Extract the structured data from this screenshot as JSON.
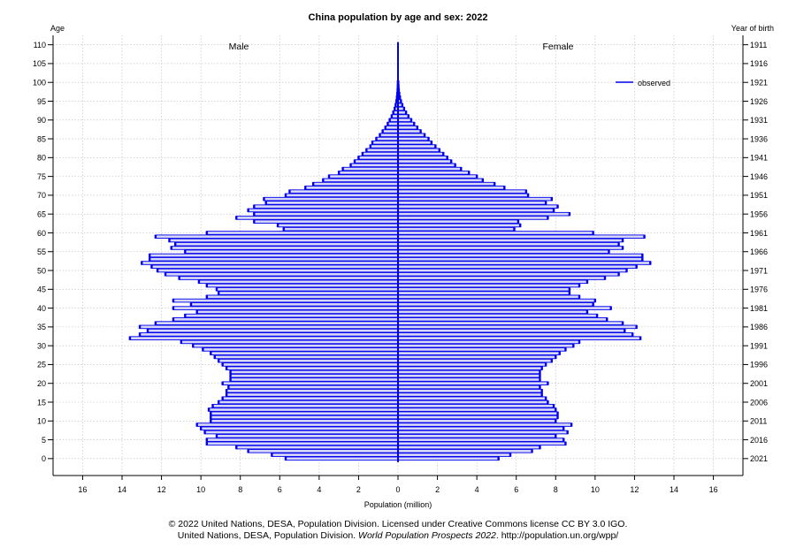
{
  "chart_data": {
    "type": "bar",
    "orientation": "horizontal",
    "title": "China population by age and sex: 2022",
    "left_axis_title": "Age",
    "right_axis_title": "Year of birth",
    "xlabel": "Population (million)",
    "xlim": [
      -17.5,
      17.5
    ],
    "ylim": [
      -4.5,
      112.5
    ],
    "x_ticks": [
      -16,
      -14,
      -12,
      -10,
      -8,
      -6,
      -4,
      -2,
      0,
      2,
      4,
      6,
      8,
      10,
      12,
      14,
      16
    ],
    "x_tick_labels": [
      "16",
      "14",
      "12",
      "10",
      "8",
      "6",
      "4",
      "2",
      "0",
      "2",
      "4",
      "6",
      "8",
      "10",
      "12",
      "14",
      "16"
    ],
    "age_ticks": [
      "0",
      "5",
      "10",
      "15",
      "20",
      "25",
      "30",
      "35",
      "40",
      "45",
      "50",
      "55",
      "60",
      "65",
      "70",
      "75",
      "80",
      "85",
      "90",
      "95",
      "100",
      "105",
      "110"
    ],
    "birth_year_ticks": [
      "2021",
      "2016",
      "2011",
      "2006",
      "2001",
      "1996",
      "1991",
      "1986",
      "1981",
      "1976",
      "1971",
      "1966",
      "1961",
      "1956",
      "1951",
      "1946",
      "1941",
      "1936",
      "1931",
      "1926",
      "1921",
      "1916",
      "1911"
    ],
    "grid": true,
    "legend_position": "top-right",
    "colors": {
      "bar_fill": "#d6d6f5",
      "bar_edge": "#0000ee",
      "axis": "#000000",
      "grid": "#bbbbbb"
    },
    "series": [
      {
        "name": "Male",
        "ages": [
          0,
          1,
          2,
          3,
          4,
          5,
          6,
          7,
          8,
          9,
          10,
          11,
          12,
          13,
          14,
          15,
          16,
          17,
          18,
          19,
          20,
          21,
          22,
          23,
          24,
          25,
          26,
          27,
          28,
          29,
          30,
          31,
          32,
          33,
          34,
          35,
          36,
          37,
          38,
          39,
          40,
          41,
          42,
          43,
          44,
          45,
          46,
          47,
          48,
          49,
          50,
          51,
          52,
          53,
          54,
          55,
          56,
          57,
          58,
          59,
          60,
          61,
          62,
          63,
          64,
          65,
          66,
          67,
          68,
          69,
          70,
          71,
          72,
          73,
          74,
          75,
          76,
          77,
          78,
          79,
          80,
          81,
          82,
          83,
          84,
          85,
          86,
          87,
          88,
          89,
          90,
          91,
          92,
          93,
          94,
          95,
          96,
          97,
          98,
          99,
          100
        ],
        "values": [
          5.7,
          6.4,
          7.6,
          8.2,
          9.7,
          9.7,
          9.2,
          9.8,
          10.0,
          10.2,
          9.5,
          9.5,
          9.5,
          9.6,
          9.4,
          9.1,
          8.9,
          8.7,
          8.7,
          8.6,
          8.9,
          8.5,
          8.5,
          8.5,
          8.7,
          8.9,
          9.1,
          9.3,
          9.5,
          9.9,
          10.4,
          11.0,
          13.6,
          13.1,
          12.7,
          13.1,
          12.3,
          11.4,
          10.8,
          10.2,
          11.4,
          10.5,
          11.4,
          9.7,
          9.1,
          9.2,
          9.7,
          10.1,
          11.1,
          11.8,
          12.2,
          12.5,
          13.0,
          12.6,
          12.6,
          10.8,
          11.5,
          11.3,
          11.6,
          12.3,
          9.7,
          5.8,
          6.1,
          7.3,
          8.2,
          7.3,
          7.6,
          7.3,
          6.7,
          6.8,
          5.7,
          5.5,
          4.7,
          4.3,
          3.8,
          3.5,
          3.0,
          2.8,
          2.4,
          2.2,
          2.0,
          1.8,
          1.6,
          1.4,
          1.3,
          1.1,
          0.92,
          0.78,
          0.64,
          0.52,
          0.42,
          0.32,
          0.24,
          0.17,
          0.12,
          0.08,
          0.055,
          0.035,
          0.02,
          0.012,
          0.007
        ]
      },
      {
        "name": "Female",
        "ages": [
          0,
          1,
          2,
          3,
          4,
          5,
          6,
          7,
          8,
          9,
          10,
          11,
          12,
          13,
          14,
          15,
          16,
          17,
          18,
          19,
          20,
          21,
          22,
          23,
          24,
          25,
          26,
          27,
          28,
          29,
          30,
          31,
          32,
          33,
          34,
          35,
          36,
          37,
          38,
          39,
          40,
          41,
          42,
          43,
          44,
          45,
          46,
          47,
          48,
          49,
          50,
          51,
          52,
          53,
          54,
          55,
          56,
          57,
          58,
          59,
          60,
          61,
          62,
          63,
          64,
          65,
          66,
          67,
          68,
          69,
          70,
          71,
          72,
          73,
          74,
          75,
          76,
          77,
          78,
          79,
          80,
          81,
          82,
          83,
          84,
          85,
          86,
          87,
          88,
          89,
          90,
          91,
          92,
          93,
          94,
          95,
          96,
          97,
          98,
          99,
          100
        ],
        "values": [
          5.1,
          5.7,
          6.8,
          7.2,
          8.5,
          8.4,
          8.0,
          8.6,
          8.4,
          8.8,
          8.0,
          8.1,
          8.1,
          8.0,
          7.9,
          7.6,
          7.5,
          7.3,
          7.3,
          7.2,
          7.6,
          7.2,
          7.2,
          7.2,
          7.3,
          7.5,
          7.8,
          8.0,
          8.2,
          8.5,
          8.9,
          9.2,
          12.3,
          11.9,
          11.5,
          12.1,
          11.4,
          10.6,
          10.1,
          9.6,
          10.8,
          9.9,
          10.0,
          9.2,
          8.7,
          8.7,
          9.2,
          9.6,
          10.5,
          11.2,
          11.6,
          12.1,
          12.8,
          12.4,
          12.4,
          10.7,
          11.4,
          11.2,
          11.4,
          12.5,
          9.9,
          5.9,
          6.2,
          6.1,
          7.6,
          8.7,
          7.9,
          8.1,
          7.5,
          7.8,
          6.6,
          6.5,
          5.4,
          4.9,
          4.3,
          4.0,
          3.6,
          3.2,
          2.9,
          2.7,
          2.5,
          2.3,
          2.1,
          1.9,
          1.7,
          1.55,
          1.35,
          1.15,
          0.98,
          0.82,
          0.67,
          0.53,
          0.41,
          0.31,
          0.22,
          0.15,
          0.1,
          0.065,
          0.04,
          0.025,
          0.015
        ]
      }
    ],
    "side_labels": {
      "left": "Male",
      "right": "Female"
    },
    "legend": [
      {
        "label": "observed",
        "style": "line"
      }
    ]
  },
  "footer": {
    "line1": "© 2022 United Nations, DESA, Population Division. Licensed under Creative Commons license CC BY 3.0 IGO.",
    "line2_prefix": "United Nations, DESA, Population Division. ",
    "line2_italic": "World Population Prospects 2022",
    "line2_suffix": ". http://population.un.org/wpp/"
  }
}
